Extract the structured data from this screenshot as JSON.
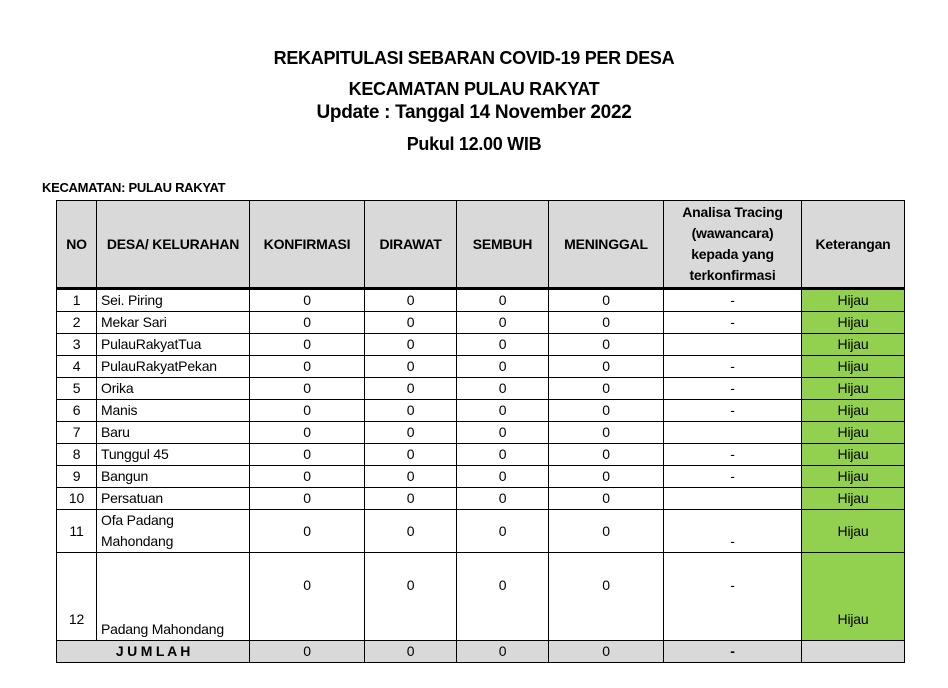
{
  "header": {
    "line1": "REKAPITULASI SEBARAN COVID-19 PER DESA",
    "line2": "KECAMATAN PULAU RAKYAT",
    "line3": "Update : Tanggal 14 November 2022",
    "line4": "Pukul 12.00 WIB"
  },
  "kecamatan_label": "KECAMATAN: PULAU RAKYAT",
  "colors": {
    "green": "#92d050",
    "header_gray": "#d9d9d9"
  },
  "table": {
    "columns": [
      "NO",
      "DESA/ KELURAHAN",
      "KONFIRMASI",
      "DIRAWAT",
      "SEMBUH",
      "MENINGGAL",
      "Analisa Tracing (wawancara) kepada yang terkonfirmasi",
      "Keterangan"
    ],
    "rows": [
      {
        "no": "1",
        "desa": "Sei. Piring",
        "konfirmasi": "0",
        "dirawat": "0",
        "sembuh": "0",
        "meninggal": "0",
        "tracing": "-",
        "ket": "Hijau"
      },
      {
        "no": "2",
        "desa": "Mekar Sari",
        "konfirmasi": "0",
        "dirawat": "0",
        "sembuh": "0",
        "meninggal": "0",
        "tracing": "-",
        "ket": "Hijau"
      },
      {
        "no": "3",
        "desa": "PulauRakyatTua",
        "konfirmasi": "0",
        "dirawat": "0",
        "sembuh": "0",
        "meninggal": "0",
        "tracing": "",
        "ket": "Hijau"
      },
      {
        "no": "4",
        "desa": "PulauRakyatPekan",
        "konfirmasi": "0",
        "dirawat": "0",
        "sembuh": "0",
        "meninggal": "0",
        "tracing": "-",
        "ket": "Hijau"
      },
      {
        "no": "5",
        "desa": "Orika",
        "konfirmasi": "0",
        "dirawat": "0",
        "sembuh": "0",
        "meninggal": "0",
        "tracing": "-",
        "ket": "Hijau"
      },
      {
        "no": "6",
        "desa": "Manis",
        "konfirmasi": "0",
        "dirawat": "0",
        "sembuh": "0",
        "meninggal": "0",
        "tracing": "-",
        "ket": "Hijau"
      },
      {
        "no": "7",
        "desa": "Baru",
        "konfirmasi": "0",
        "dirawat": "0",
        "sembuh": "0",
        "meninggal": "0",
        "tracing": "",
        "ket": "Hijau"
      },
      {
        "no": "8",
        "desa": "Tunggul 45",
        "konfirmasi": "0",
        "dirawat": "0",
        "sembuh": "0",
        "meninggal": "0",
        "tracing": "-",
        "ket": "Hijau"
      },
      {
        "no": "9",
        "desa": "Bangun",
        "konfirmasi": "0",
        "dirawat": "0",
        "sembuh": "0",
        "meninggal": "0",
        "tracing": "-",
        "ket": "Hijau"
      },
      {
        "no": "10",
        "desa": "Persatuan",
        "konfirmasi": "0",
        "dirawat": "0",
        "sembuh": "0",
        "meninggal": "0",
        "tracing": "",
        "ket": "Hijau"
      },
      {
        "no": "11",
        "desa": "Ofa Padang Mahondang",
        "konfirmasi": "0",
        "dirawat": "0",
        "sembuh": "0",
        "meninggal": "0",
        "tracing": "-",
        "ket": "Hijau"
      },
      {
        "no": "12",
        "desa": "Padang Mahondang",
        "konfirmasi": "0",
        "dirawat": "0",
        "sembuh": "0",
        "meninggal": "0",
        "tracing": "-",
        "ket": "Hijau"
      }
    ],
    "total": {
      "label": "J U M L A H",
      "konfirmasi": "0",
      "dirawat": "0",
      "sembuh": "0",
      "meninggal": "0",
      "tracing": "-",
      "ket": ""
    }
  }
}
